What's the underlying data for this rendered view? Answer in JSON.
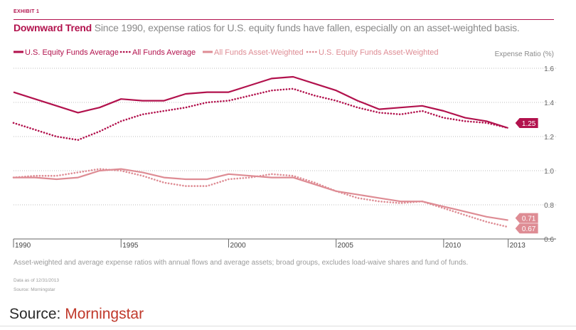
{
  "exhibit_label": "EXHIBIT 1",
  "title_lead": "Downward Trend",
  "title_rest": "Since 1990, expense ratios for U.S. equity funds have fallen, especially on an asset-weighted basis.",
  "notes": "Asset-weighted and average expense ratios with annual flows and average assets; broad groups, excludes load-waive shares and fund of funds.",
  "data_as_of": "Data as of 12/31/2013",
  "source_small": "Source: Morningstar",
  "footer": {
    "prefix": "Source: ",
    "source": "Morningstar"
  },
  "colors": {
    "dark": "#b2124d",
    "light": "#de8c94",
    "grid": "#bdbdbd",
    "text": "#8a8a8a"
  },
  "chart_data": {
    "type": "line",
    "ylabel": "Expense Ratio (%)",
    "xlim": [
      1990,
      2014.5
    ],
    "ylim": [
      0.6,
      1.6
    ],
    "x_ticks": [
      1990,
      1995,
      2000,
      2005,
      2010,
      2013
    ],
    "y_ticks": [
      0.6,
      0.8,
      1.0,
      1.2,
      1.4,
      1.6
    ],
    "x": [
      1990,
      1991,
      1992,
      1993,
      1994,
      1995,
      1996,
      1997,
      1998,
      1999,
      2000,
      2001,
      2002,
      2003,
      2004,
      2005,
      2006,
      2007,
      2008,
      2009,
      2010,
      2011,
      2012,
      2013
    ],
    "series": [
      {
        "name": "U.S. Equity Funds Average",
        "style": "solid",
        "shade": "dark",
        "values": [
          1.46,
          1.42,
          1.38,
          1.34,
          1.37,
          1.42,
          1.41,
          1.41,
          1.45,
          1.46,
          1.46,
          1.5,
          1.54,
          1.55,
          1.51,
          1.47,
          1.41,
          1.36,
          1.37,
          1.38,
          1.35,
          1.31,
          1.29,
          1.25
        ]
      },
      {
        "name": "All Funds Average",
        "style": "dotted",
        "shade": "dark",
        "values": [
          1.28,
          1.24,
          1.2,
          1.18,
          1.23,
          1.29,
          1.33,
          1.35,
          1.37,
          1.4,
          1.41,
          1.44,
          1.47,
          1.48,
          1.44,
          1.41,
          1.37,
          1.34,
          1.33,
          1.35,
          1.31,
          1.29,
          1.28,
          1.25
        ]
      },
      {
        "name": "All Funds Asset-Weighted",
        "style": "solid",
        "shade": "light",
        "values": [
          0.96,
          0.96,
          0.95,
          0.96,
          1.0,
          1.01,
          0.99,
          0.96,
          0.95,
          0.95,
          0.98,
          0.97,
          0.96,
          0.96,
          0.92,
          0.88,
          0.86,
          0.84,
          0.82,
          0.82,
          0.79,
          0.76,
          0.73,
          0.71
        ]
      },
      {
        "name": "U.S. Equity Funds Asset-Weighted",
        "style": "dotted",
        "shade": "light",
        "values": [
          0.96,
          0.97,
          0.97,
          0.99,
          1.01,
          1.0,
          0.97,
          0.93,
          0.91,
          0.91,
          0.95,
          0.96,
          0.98,
          0.97,
          0.93,
          0.88,
          0.84,
          0.82,
          0.81,
          0.82,
          0.78,
          0.74,
          0.7,
          0.67
        ]
      }
    ],
    "end_labels": [
      {
        "text": "1.25",
        "value": 1.25,
        "shade": "dark"
      },
      {
        "text": "0.71",
        "value": 0.71,
        "shade": "light"
      },
      {
        "text": "0.67",
        "value": 0.67,
        "shade": "light"
      }
    ]
  }
}
